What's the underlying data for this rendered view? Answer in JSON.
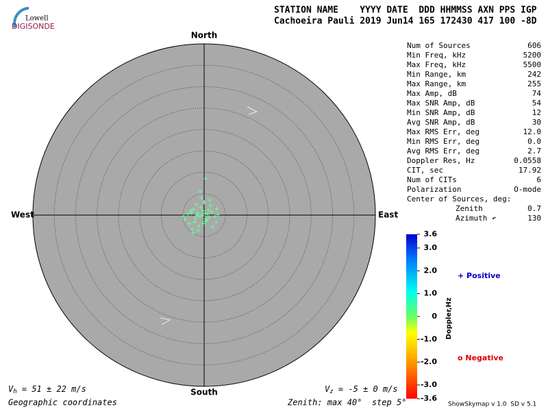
{
  "header": {
    "logo_top": "Lowell",
    "logo_bottom": "DIGISONDE",
    "columns": "STATION NAME    YYYY DATE  DDD HHMMSS AXN PPS IGP",
    "values": "Cachoeira Pauli 2019 Jun14 165 172430 417 100 -8D"
  },
  "skymap": {
    "directions": {
      "north": "North",
      "south": "South",
      "east": "East",
      "west": "West"
    },
    "zenith_max": 40,
    "step": 5,
    "color": "#66ff99",
    "sources": {
      "x": [
        -0.5,
        0.2,
        -1.0,
        0.8,
        -1.5,
        1.2,
        -0.3,
        0.5,
        -2.0,
        1.8,
        -2.5,
        2.5,
        -3.0,
        3.2,
        -4.5,
        -3.5,
        0.0,
        -1.2,
        1.5,
        -0.8,
        0.3,
        -2.2,
        2.0,
        -1.8,
        -0.6,
        -4.8,
        -3.8,
        -2.8,
        -1.4,
        3.0,
        1.0,
        -0.2,
        0.6,
        -1.6,
        2.8,
        -3.2,
        0.4,
        -0.9,
        1.3,
        -2.6
      ],
      "y": [
        0.0,
        0.4,
        -0.3,
        0.2,
        0.6,
        -0.5,
        1.0,
        -0.9,
        -0.8,
        0.8,
        1.3,
        -0.3,
        0.5,
        0.1,
        -1.0,
        -2.0,
        3.0,
        -2.5,
        2.2,
        1.8,
        -1.5,
        -1.6,
        -2.8,
        2.5,
        4.0,
        -0.2,
        0.3,
        -3.2,
        -3.6,
        1.5,
        1.2,
        -2.0,
        -1.2,
        0.0,
        -1.6,
        1.0,
        8.5,
        5.5,
        3.5,
        -4.2
      ]
    }
  },
  "stats": [
    [
      "Num of Sources",
      "606"
    ],
    [
      "Min Freq, kHz",
      "5200"
    ],
    [
      "Max Freq, kHz",
      "5500"
    ],
    [
      "Min Range, km",
      "242"
    ],
    [
      "Max Range, km",
      "255"
    ],
    [
      "Max Amp, dB",
      "74"
    ],
    [
      "Max SNR Amp, dB",
      "54"
    ],
    [
      "Min SNR Amp, dB",
      "12"
    ],
    [
      "Avg SNR Amp, dB",
      "30"
    ],
    [
      "Max RMS Err, deg",
      "12.0"
    ],
    [
      "Min RMS Err, deg",
      "0.0"
    ],
    [
      "Avg RMS Err, deg",
      "2.7"
    ],
    [
      "Doppler Res, Hz",
      "0.0558"
    ],
    [
      "CIT, sec",
      "17.92"
    ],
    [
      "Num of CITs",
      "6"
    ],
    [
      "Polarization",
      "O-mode"
    ]
  ],
  "center": {
    "title": "Center of Sources, deg:",
    "rows": [
      [
        "Zenith",
        "0.7"
      ],
      [
        "Azimuth ↶",
        "130"
      ]
    ]
  },
  "colorbar": {
    "label": "Doppler,Hz",
    "lim": [
      -3.6,
      3.6
    ],
    "ticks": [
      3.6,
      {
        "value": 3,
        "label": "3.0"
      },
      {
        "value": 2,
        "label": "2.0"
      },
      {
        "value": 1,
        "label": "1.0"
      },
      0,
      {
        "value": -1,
        "label": "-1.0"
      },
      {
        "value": -2,
        "label": "-2.0"
      },
      {
        "value": -3,
        "label": "-3.0"
      },
      -3.6
    ]
  },
  "legend": {
    "positive": "+ Positive",
    "negative": "o Negative"
  },
  "footer": {
    "vh": {
      "symbol": "V",
      "sub": "h",
      "text": " = 51 ± 22 m/s"
    },
    "vz": {
      "symbol": "V",
      "sub": "z",
      "text": " = -5 ± 0 m/s"
    },
    "coords": "Geographic coordinates",
    "zenith": "Zenith: max 40°  step 5°",
    "version": "ShowSkymap v 1.0  SD v 5.1"
  }
}
